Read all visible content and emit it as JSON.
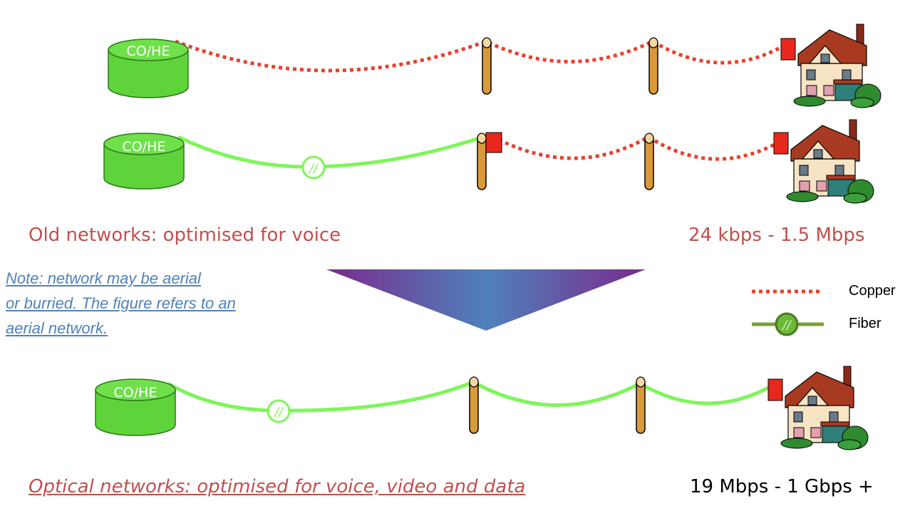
{
  "rows": [
    {
      "id": "old-copper",
      "node_label": "CO/HE"
    },
    {
      "id": "old-hybrid",
      "node_label": "CO/HE"
    },
    {
      "id": "optical",
      "node_label": "CO/HE"
    }
  ],
  "captions": {
    "old_networks": "Old networks: optimised for voice",
    "old_speed": "24 kbps - 1.5 Mbps",
    "optical_networks": "Optical networks: optimised for voice, video and data",
    "optical_speed": "19 Mbps - 1 Gbps +"
  },
  "note": {
    "line1": "Note: network may be aerial",
    "line2": "or burried. The figure refers to an",
    "line3": "aerial network."
  },
  "legend": {
    "copper_label": "Copper",
    "fiber_label": "Fiber",
    "fiber_glyph": "//"
  },
  "splice_glyph": "//",
  "colors": {
    "copper": "#e8412c",
    "fiber": "#7ef55a",
    "node_fill": "#5ed43a",
    "node_stroke": "#2b7a1a",
    "pole": "#d99a3a",
    "caption_red": "#c0504d",
    "note_blue": "#4f81bd",
    "arrow_top": "#7a2a8a",
    "arrow_mid": "#4f81bd"
  }
}
